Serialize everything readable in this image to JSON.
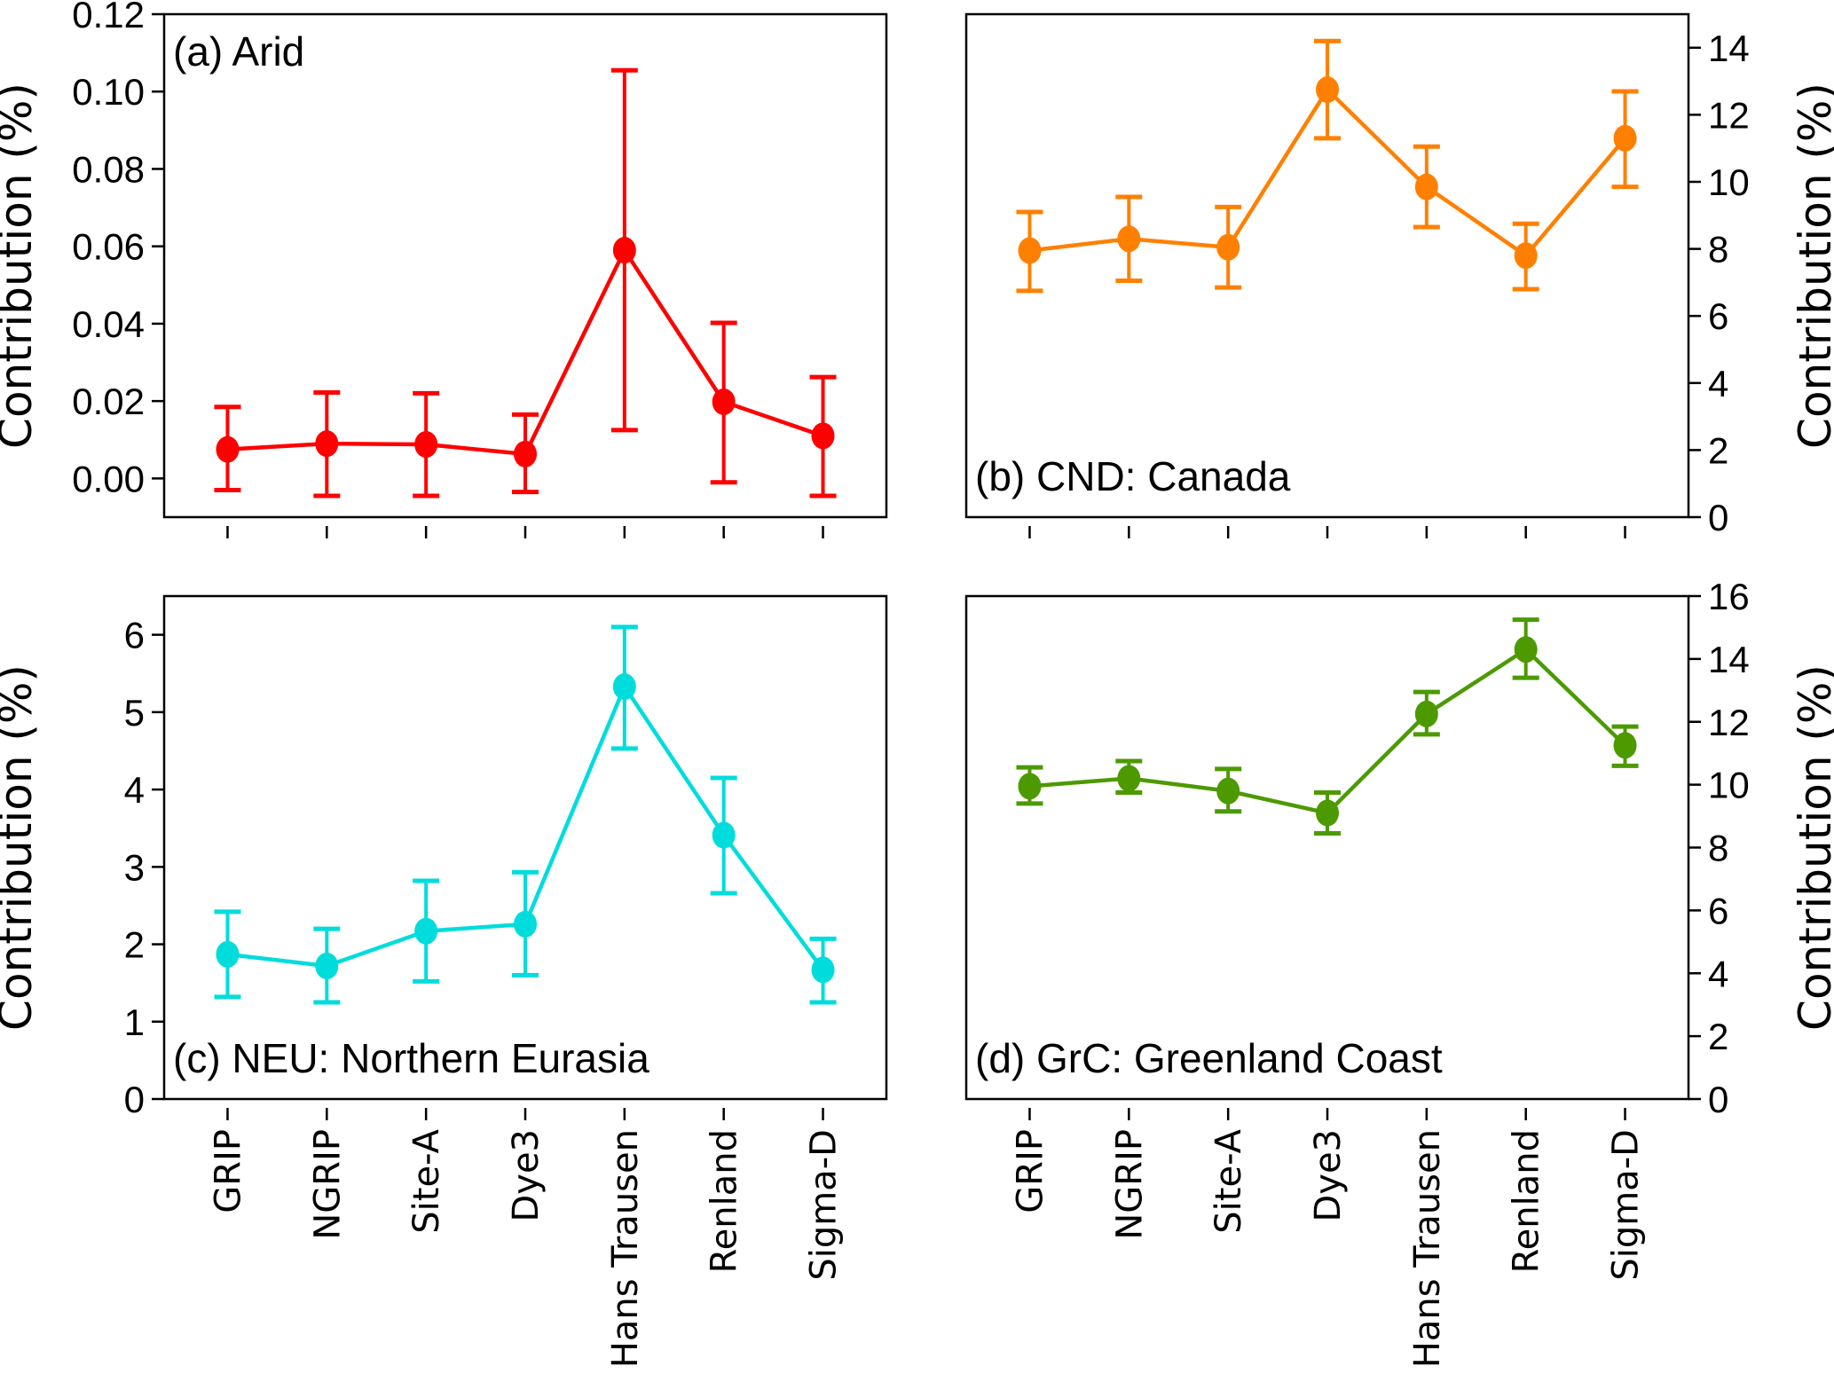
{
  "chart_data": [
    {
      "type": "line",
      "panel": "a",
      "title": "(a) Arid",
      "title_position": "top-left",
      "ylabel": "Contribution (%)",
      "y_axis_side": "left",
      "ylim": [
        -0.01,
        0.12
      ],
      "yticks": [
        0.0,
        0.02,
        0.04,
        0.06,
        0.08,
        0.1,
        0.12
      ],
      "ytick_labels": [
        "0.00",
        "0.02",
        "0.04",
        "0.06",
        "0.08",
        "0.10",
        "0.12"
      ],
      "color": "#ff0000",
      "categories": [
        "GRIP",
        "NGRIP",
        "Site-A",
        "Dye3",
        "Hans Trausen",
        "Renland",
        "Sigma-D"
      ],
      "values": [
        0.0075,
        0.009,
        0.0088,
        0.0063,
        0.059,
        0.0198,
        0.011
      ],
      "error_low": [
        -0.003,
        -0.0045,
        -0.0045,
        -0.0035,
        0.0125,
        -0.001,
        -0.0045
      ],
      "error_high": [
        0.0185,
        0.0222,
        0.022,
        0.0165,
        0.1055,
        0.0402,
        0.0262
      ],
      "show_xtick_labels": false
    },
    {
      "type": "line",
      "panel": "b",
      "title": "(b) CND: Canada",
      "title_position": "bottom-left",
      "ylabel": "Contribution (%)",
      "y_axis_side": "right",
      "ylim": [
        0,
        15
      ],
      "yticks": [
        0,
        2,
        4,
        6,
        8,
        10,
        12,
        14
      ],
      "ytick_labels": [
        "0",
        "2",
        "4",
        "6",
        "8",
        "10",
        "12",
        "14"
      ],
      "color": "#ff8000",
      "categories": [
        "GRIP",
        "NGRIP",
        "Site-A",
        "Dye3",
        "Hans Trausen",
        "Renland",
        "Sigma-D"
      ],
      "values": [
        7.95,
        8.3,
        8.05,
        12.75,
        9.85,
        7.8,
        11.3
      ],
      "error_low": [
        6.75,
        7.05,
        6.85,
        11.3,
        8.65,
        6.8,
        9.85
      ],
      "error_high": [
        9.1,
        9.55,
        9.25,
        14.2,
        11.05,
        8.75,
        12.7
      ],
      "show_xtick_labels": false
    },
    {
      "type": "line",
      "panel": "c",
      "title": "(c) NEU: Northern Eurasia",
      "title_position": "bottom-left",
      "ylabel": "Contribution (%)",
      "y_axis_side": "left",
      "ylim": [
        0,
        6.5
      ],
      "yticks": [
        0,
        1,
        2,
        3,
        4,
        5,
        6
      ],
      "ytick_labels": [
        "0",
        "1",
        "2",
        "3",
        "4",
        "5",
        "6"
      ],
      "color": "#00dcdc",
      "categories": [
        "GRIP",
        "NGRIP",
        "Site-A",
        "Dye3",
        "Hans Trausen",
        "Renland",
        "Sigma-D"
      ],
      "values": [
        1.87,
        1.72,
        2.17,
        2.26,
        5.33,
        3.41,
        1.67
      ],
      "error_low": [
        1.32,
        1.25,
        1.52,
        1.6,
        4.53,
        2.66,
        1.25
      ],
      "error_high": [
        2.42,
        2.2,
        2.82,
        2.93,
        6.1,
        4.15,
        2.07
      ],
      "show_xtick_labels": true
    },
    {
      "type": "line",
      "panel": "d",
      "title": "(d) GrC: Greenland Coast",
      "title_position": "bottom-left",
      "ylabel": "Contribution (%)",
      "y_axis_side": "right",
      "ylim": [
        0,
        16
      ],
      "yticks": [
        0,
        2,
        4,
        6,
        8,
        10,
        12,
        14,
        16
      ],
      "ytick_labels": [
        "0",
        "2",
        "4",
        "6",
        "8",
        "10",
        "12",
        "14",
        "16"
      ],
      "color": "#4c9a00",
      "categories": [
        "GRIP",
        "NGRIP",
        "Site-A",
        "Dye3",
        "Hans Trausen",
        "Renland",
        "Sigma-D"
      ],
      "values": [
        9.95,
        10.2,
        9.8,
        9.1,
        12.25,
        14.3,
        11.25
      ],
      "error_low": [
        9.4,
        9.75,
        9.15,
        8.45,
        11.6,
        13.4,
        10.6
      ],
      "error_high": [
        10.55,
        10.75,
        10.5,
        9.75,
        12.95,
        15.25,
        11.85
      ],
      "show_xtick_labels": true
    }
  ]
}
